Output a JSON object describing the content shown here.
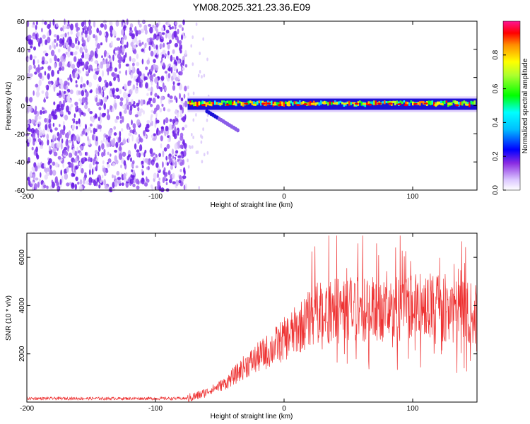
{
  "title": "YM08.2025.321.23.36.E09",
  "colors": {
    "snr_line": "#ee3333",
    "noise_purple": "#7a2cf0",
    "colorbar": [
      "#ff00ff",
      "#0000ff",
      "#00ffff",
      "#00ff00",
      "#ffff00",
      "#ff0000",
      "#ff00aa"
    ]
  },
  "chart_data": [
    {
      "type": "heatmap",
      "name": "spectrogram",
      "xlabel": "Height of straight line (km)",
      "ylabel": "Frequency (Hz)",
      "xlim": [
        -200,
        150
      ],
      "ylim": [
        -60,
        60
      ],
      "xticks": [
        -200,
        -100,
        0,
        100
      ],
      "xtick_labels": [
        "-200",
        "-100",
        "0",
        "100"
      ],
      "yticks": [
        60,
        40,
        20,
        0,
        -20,
        -40,
        -60
      ],
      "ytick_labels": [
        "60",
        "40",
        "20",
        "0",
        "-20",
        "-40",
        "-60"
      ],
      "noise_region_x": [
        -200,
        -75
      ],
      "band_start_x": -75,
      "band_center_hz": 1,
      "band_halfwidth_hz": 4,
      "colorbar": {
        "label": "Normalized spectral amplitude",
        "range": [
          0,
          1
        ],
        "ticks": [
          0.0,
          0.2,
          0.4,
          0.6,
          0.8
        ],
        "tick_labels": [
          "0.0",
          "0.2",
          "0.4",
          "0.6",
          "0.8"
        ]
      }
    },
    {
      "type": "line",
      "name": "snr",
      "xlabel": "Height of straight line (km)",
      "ylabel": "SNR (10 * v/v)",
      "xlim": [
        -200,
        150
      ],
      "ylim": [
        0,
        7000
      ],
      "xticks": [
        -200,
        -100,
        0,
        100
      ],
      "xtick_labels": [
        "-200",
        "-100",
        "0",
        "100"
      ],
      "yticks": [
        2000,
        4000,
        6000
      ],
      "ytick_labels": [
        "2000",
        "4000",
        "6000"
      ],
      "trend": [
        {
          "x": -200,
          "y": 150
        },
        {
          "x": -75,
          "y": 150
        },
        {
          "x": -65,
          "y": 300
        },
        {
          "x": -45,
          "y": 800
        },
        {
          "x": -30,
          "y": 1500
        },
        {
          "x": -10,
          "y": 2200
        },
        {
          "x": 10,
          "y": 3000
        },
        {
          "x": 25,
          "y": 3700
        },
        {
          "x": 50,
          "y": 3900
        },
        {
          "x": 80,
          "y": 3800
        },
        {
          "x": 110,
          "y": 4000
        },
        {
          "x": 150,
          "y": 3600
        }
      ],
      "peak_max": 6900
    }
  ]
}
